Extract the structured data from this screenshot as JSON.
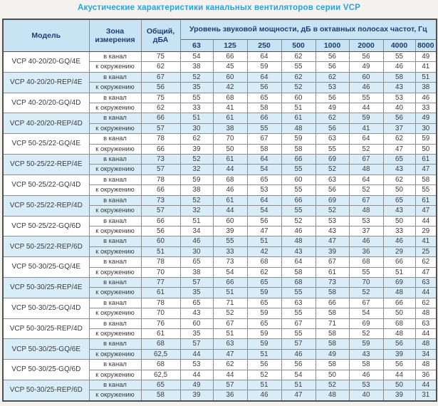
{
  "title": "Акустические характеристики канальных вентиляторов  серии VCP",
  "table": {
    "header": {
      "model": "Модель",
      "zone": "Зона измерения",
      "total": "Общий, дБА",
      "freq_group": "Уровень звуковой мощности, дБ в октавных полосах частот, Гц",
      "frequencies": [
        "63",
        "125",
        "250",
        "500",
        "1000",
        "2000",
        "4000",
        "8000"
      ]
    },
    "zone_labels": {
      "duct": "в канал",
      "ambient": "к окружению"
    },
    "colors": {
      "title": "#2aa3da",
      "header_bg": "#c8e4f4",
      "header_text": "#1c3e70",
      "shaded_row_bg": "#d9edf8",
      "data_text": "#3b3b3b"
    },
    "groups": [
      {
        "model": "VCP 40-20/20-GQ/4E",
        "shaded": false,
        "rows": [
          {
            "zone": "в канал",
            "total": "75",
            "values": [
              "54",
              "66",
              "64",
              "62",
              "56",
              "56",
              "55",
              "49"
            ]
          },
          {
            "zone": "к окружению",
            "total": "62",
            "values": [
              "38",
              "45",
              "59",
              "55",
              "56",
              "49",
              "46",
              "41"
            ]
          }
        ]
      },
      {
        "model": "VCP 40-20/20-REP/4E",
        "shaded": true,
        "rows": [
          {
            "zone": "в канал",
            "total": "67",
            "values": [
              "52",
              "60",
              "64",
              "62",
              "62",
              "60",
              "58",
              "51"
            ]
          },
          {
            "zone": "к окружению",
            "total": "56",
            "values": [
              "35",
              "42",
              "56",
              "52",
              "53",
              "46",
              "43",
              "38"
            ]
          }
        ]
      },
      {
        "model": "VCP 40-20/20-GQ/4D",
        "shaded": false,
        "rows": [
          {
            "zone": "в канал",
            "total": "75",
            "values": [
              "55",
              "68",
              "65",
              "60",
              "56",
              "55",
              "53",
              "46"
            ]
          },
          {
            "zone": "к окружению",
            "total": "62",
            "values": [
              "33",
              "41",
              "58",
              "51",
              "49",
              "44",
              "40",
              "33"
            ]
          }
        ]
      },
      {
        "model": "VCP 40-20/20-REP/4D",
        "shaded": true,
        "rows": [
          {
            "zone": "в канал",
            "total": "66",
            "values": [
              "51",
              "61",
              "66",
              "61",
              "62",
              "59",
              "56",
              "49"
            ]
          },
          {
            "zone": "к окружению",
            "total": "57",
            "values": [
              "30",
              "38",
              "55",
              "48",
              "56",
              "41",
              "37",
              "30"
            ]
          }
        ]
      },
      {
        "model": "VCP 50-25/22-GQ/4E",
        "shaded": false,
        "rows": [
          {
            "zone": "в канал",
            "total": "78",
            "values": [
              "62",
              "70",
              "67",
              "59",
              "63",
              "64",
              "62",
              "59"
            ]
          },
          {
            "zone": "к окружению",
            "total": "66",
            "values": [
              "39",
              "50",
              "58",
              "58",
              "55",
              "52",
              "47",
              "50"
            ]
          }
        ]
      },
      {
        "model": "VCP 50-25/22-REP/4E",
        "shaded": true,
        "rows": [
          {
            "zone": "в канал",
            "total": "73",
            "values": [
              "52",
              "61",
              "64",
              "66",
              "69",
              "67",
              "65",
              "61"
            ]
          },
          {
            "zone": "к окружению",
            "total": "57",
            "values": [
              "32",
              "44",
              "54",
              "55",
              "52",
              "48",
              "43",
              "47"
            ]
          }
        ]
      },
      {
        "model": "VCP 50-25/22-GQ/4D",
        "shaded": false,
        "rows": [
          {
            "zone": "в канал",
            "total": "78",
            "values": [
              "59",
              "68",
              "65",
              "60",
              "63",
              "64",
              "62",
              "58"
            ]
          },
          {
            "zone": "к окружению",
            "total": "66",
            "values": [
              "38",
              "46",
              "53",
              "55",
              "56",
              "52",
              "50",
              "55"
            ]
          }
        ]
      },
      {
        "model": "VCP 50-25/22-REP/4D",
        "shaded": true,
        "rows": [
          {
            "zone": "в канал",
            "total": "73",
            "values": [
              "52",
              "61",
              "64",
              "66",
              "69",
              "67",
              "65",
              "61"
            ]
          },
          {
            "zone": "к окружению",
            "total": "57",
            "values": [
              "32",
              "44",
              "54",
              "55",
              "52",
              "48",
              "43",
              "47"
            ]
          }
        ]
      },
      {
        "model": "VCP 50-25/22-GQ/6D",
        "shaded": false,
        "rows": [
          {
            "zone": "в канал",
            "total": "66",
            "values": [
              "51",
              "60",
              "56",
              "52",
              "53",
              "53",
              "50",
              "44"
            ]
          },
          {
            "zone": "к окружению",
            "total": "56",
            "values": [
              "34",
              "39",
              "47",
              "46",
              "43",
              "37",
              "33",
              "29"
            ]
          }
        ]
      },
      {
        "model": "VCP 50-25/22-REP/6D",
        "shaded": true,
        "rows": [
          {
            "zone": "в канал",
            "total": "60",
            "values": [
              "46",
              "55",
              "51",
              "48",
              "47",
              "46",
              "46",
              "41"
            ]
          },
          {
            "zone": "к окружению",
            "total": "51",
            "values": [
              "30",
              "33",
              "42",
              "43",
              "39",
              "36",
              "29",
              "25"
            ]
          }
        ]
      },
      {
        "model": "VCP 50-30/25-GQ/4E",
        "shaded": false,
        "rows": [
          {
            "zone": "в канал",
            "total": "78",
            "values": [
              "65",
              "73",
              "68",
              "64",
              "67",
              "68",
              "66",
              "62"
            ]
          },
          {
            "zone": "к окружению",
            "total": "70",
            "values": [
              "38",
              "54",
              "62",
              "58",
              "61",
              "55",
              "51",
              "47"
            ]
          }
        ]
      },
      {
        "model": "VCP 50-30/25-REP/4E",
        "shaded": true,
        "rows": [
          {
            "zone": "в канал",
            "total": "77",
            "values": [
              "57",
              "66",
              "65",
              "68",
              "73",
              "70",
              "69",
              "63"
            ]
          },
          {
            "zone": "к окружению",
            "total": "61",
            "values": [
              "35",
              "51",
              "59",
              "55",
              "58",
              "52",
              "48",
              "44"
            ]
          }
        ]
      },
      {
        "model": "VCP 50-30/25-GQ/4D",
        "shaded": false,
        "rows": [
          {
            "zone": "в канал",
            "total": "78",
            "values": [
              "65",
              "71",
              "65",
              "63",
              "66",
              "67",
              "66",
              "62"
            ]
          },
          {
            "zone": "к окружению",
            "total": "70",
            "values": [
              "43",
              "52",
              "59",
              "55",
              "58",
              "54",
              "50",
              "48"
            ]
          }
        ]
      },
      {
        "model": "VCP 50-30/25-REP/4D",
        "shaded": false,
        "rows": [
          {
            "zone": "в канал",
            "total": "76",
            "values": [
              "60",
              "67",
              "65",
              "67",
              "71",
              "69",
              "68",
              "63"
            ]
          },
          {
            "zone": "к окружению",
            "total": "61",
            "values": [
              "35",
              "51",
              "59",
              "55",
              "58",
              "52",
              "48",
              "44"
            ]
          }
        ]
      },
      {
        "model": "VCP 50-30/25-GQ/6E",
        "shaded": true,
        "rows": [
          {
            "zone": "в канал",
            "total": "68",
            "values": [
              "57",
              "63",
              "59",
              "57",
              "58",
              "59",
              "56",
              "48"
            ]
          },
          {
            "zone": "к окружению",
            "total": "62,5",
            "values": [
              "44",
              "47",
              "51",
              "46",
              "49",
              "43",
              "39",
              "34"
            ]
          }
        ]
      },
      {
        "model": "VCP 50-30/25-GQ/6D",
        "shaded": false,
        "rows": [
          {
            "zone": "в канал",
            "total": "68",
            "values": [
              "53",
              "62",
              "56",
              "56",
              "58",
              "58",
              "56",
              "48"
            ]
          },
          {
            "zone": "к окружению",
            "total": "62,5",
            "values": [
              "44",
              "44",
              "52",
              "54",
              "50",
              "46",
              "44",
              "36"
            ]
          }
        ]
      },
      {
        "model": "VCP 50-30/25-REP/6D",
        "shaded": true,
        "rows": [
          {
            "zone": "в канал",
            "total": "65",
            "values": [
              "49",
              "57",
              "51",
              "51",
              "52",
              "53",
              "50",
              "44"
            ]
          },
          {
            "zone": "к окружению",
            "total": "58",
            "values": [
              "39",
              "36",
              "46",
              "47",
              "48",
              "40",
              "39",
              "31"
            ]
          }
        ]
      }
    ]
  }
}
